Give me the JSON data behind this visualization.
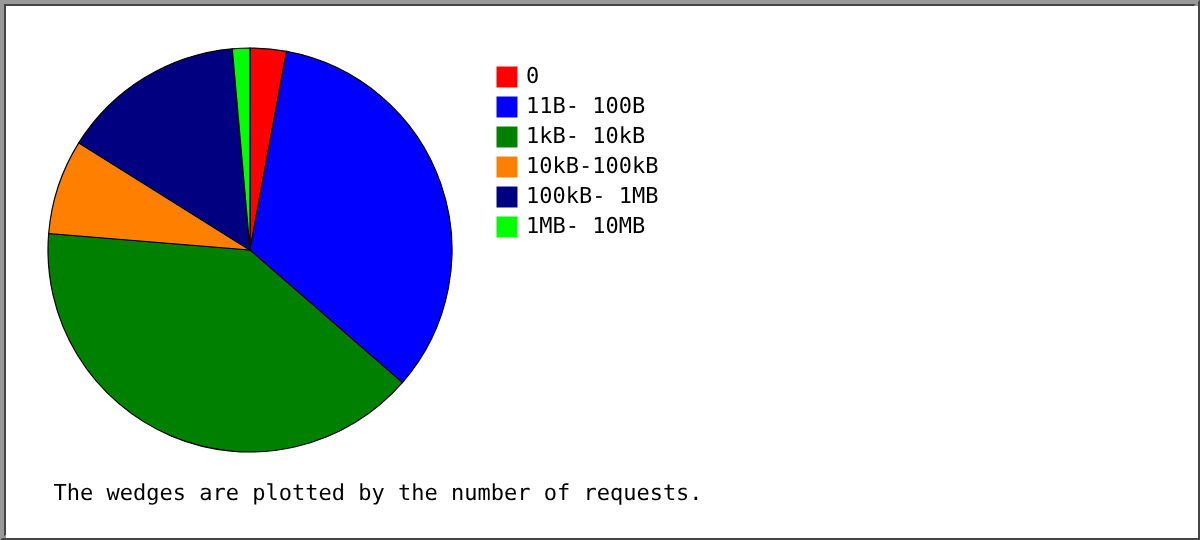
{
  "chart_data": {
    "type": "pie",
    "categories": [
      "0",
      "11B- 100B",
      "1kB- 10kB",
      "10kB-100kB",
      "100kB-  1MB",
      "1MB- 10MB"
    ],
    "values": [
      2.9,
      33.5,
      39.9,
      7.6,
      14.7,
      1.4
    ],
    "colors": [
      "#ff0000",
      "#0000ff",
      "#008000",
      "#ff8000",
      "#000080",
      "#00ff00"
    ],
    "legend": "right",
    "annotations": [
      "The wedges are plotted by the number of requests."
    ]
  }
}
